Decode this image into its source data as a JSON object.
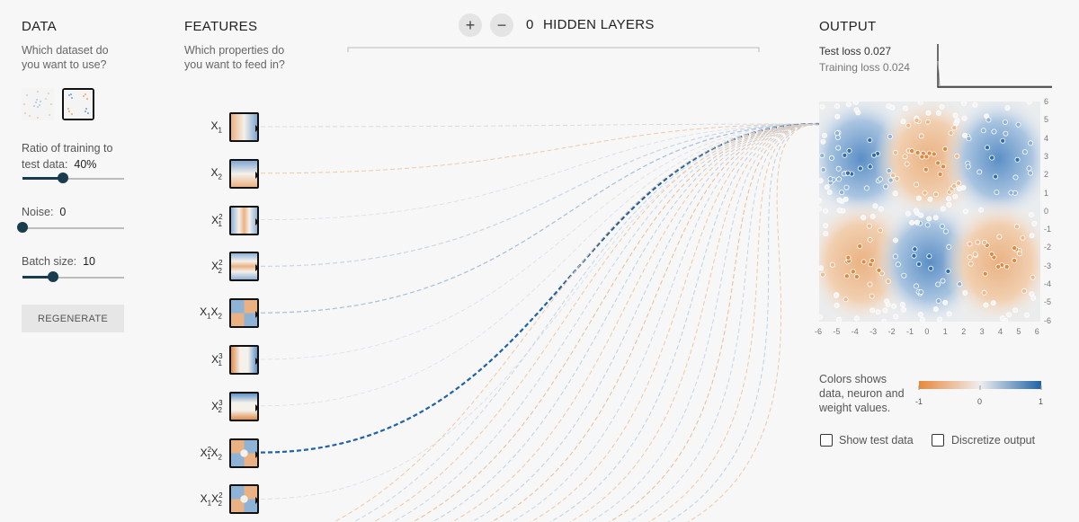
{
  "data_section": {
    "title": "DATA",
    "desc_line1": "Which dataset do",
    "desc_line2": "you want to use?",
    "ratio_label_line1": "Ratio of training to",
    "ratio_label_line2": "test data:",
    "ratio_value": "40%",
    "ratio_fraction": 0.4,
    "noise_label": "Noise:",
    "noise_value": "0",
    "noise_fraction": 0,
    "batch_label": "Batch size:",
    "batch_value": "10",
    "batch_fraction": 0.3,
    "regenerate_label": "REGENERATE"
  },
  "features_section": {
    "title": "FEATURES",
    "desc_line1": "Which properties do",
    "desc_line2": "you want to feed in?",
    "features": [
      {
        "base": "X",
        "sub1": "1",
        "sup1": "",
        "base2": "",
        "sub2": "",
        "sup2": ""
      },
      {
        "base": "X",
        "sub1": "2",
        "sup1": "",
        "base2": "",
        "sub2": "",
        "sup2": ""
      },
      {
        "base": "X",
        "sub1": "1",
        "sup1": "2",
        "base2": "",
        "sub2": "",
        "sup2": ""
      },
      {
        "base": "X",
        "sub1": "2",
        "sup1": "2",
        "base2": "",
        "sub2": "",
        "sup2": ""
      },
      {
        "base": "X",
        "sub1": "1",
        "sup1": "",
        "base2": "X",
        "sub2": "2",
        "sup2": ""
      },
      {
        "base": "X",
        "sub1": "1",
        "sup1": "3",
        "base2": "",
        "sub2": "",
        "sup2": ""
      },
      {
        "base": "X",
        "sub1": "2",
        "sup1": "3",
        "base2": "",
        "sub2": "",
        "sup2": ""
      },
      {
        "base": "X",
        "sub1": "1",
        "sup1": "2",
        "base2": "X",
        "sub2": "2",
        "sup2": ""
      },
      {
        "base": "X",
        "sub1": "1",
        "sup1": "",
        "base2": "X",
        "sub2": "2",
        "sup2": "2"
      }
    ]
  },
  "hidden_layers": {
    "plus": "+",
    "minus": "−",
    "count": "0",
    "label": "HIDDEN LAYERS"
  },
  "output_section": {
    "title": "OUTPUT",
    "test_loss": "Test loss 0.027",
    "training_loss": "Training loss 0.024",
    "y_ticks": [
      "6",
      "5",
      "4",
      "3",
      "2",
      "1",
      "0",
      "-1",
      "-2",
      "-3",
      "-4",
      "-5",
      "-6"
    ],
    "x_ticks": [
      "-6",
      "-5",
      "-4",
      "-3",
      "-2",
      "-1",
      "0",
      "1",
      "2",
      "3",
      "4",
      "5",
      "6"
    ],
    "legend_line1": "Colors shows",
    "legend_line2": "data, neuron and",
    "legend_line3": "weight values.",
    "legend_min": "-1",
    "legend_mid": "0",
    "legend_max": "1",
    "show_test_data": "Show test data",
    "discretize_output": "Discretize output"
  },
  "colors": {
    "orange": "#e8883a",
    "blue": "#1f63a5",
    "dark_blue": "#183d4e",
    "background": "#f7f7f7"
  }
}
